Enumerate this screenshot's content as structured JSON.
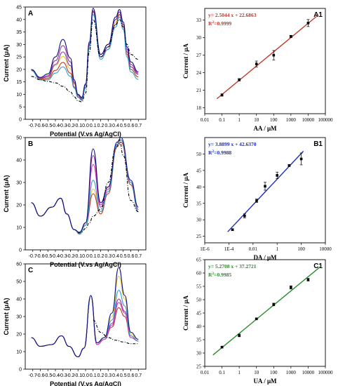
{
  "chart_data": [
    {
      "id": "A",
      "type": "line",
      "panel_label": "A",
      "xlabel": "Potential (V.vs Ag/AgCl)",
      "ylabel": "Current (μA)",
      "xlim": [
        -0.8,
        0.8
      ],
      "ylim": [
        0,
        45
      ],
      "xticks": [
        "-0.7",
        "-0.6",
        "-0.5",
        "-0.4",
        "-0.3",
        "-0.2",
        "-0.1",
        "0.0",
        "0.1",
        "0.2",
        "0.3",
        "0.4",
        "0.5",
        "0.6",
        "0.7"
      ],
      "xtick_values": [
        -0.7,
        -0.6,
        -0.5,
        -0.4,
        -0.3,
        -0.2,
        -0.1,
        0.0,
        0.1,
        0.2,
        0.3,
        0.4,
        0.5,
        0.6,
        0.7
      ],
      "yticks": [
        "0",
        "5",
        "10",
        "15",
        "20",
        "25",
        "30",
        "35",
        "40",
        "45"
      ],
      "ytick_values": [
        0,
        5,
        10,
        15,
        20,
        25,
        30,
        35,
        40,
        45
      ],
      "baseline": {
        "x": [
          -0.72,
          -0.6,
          -0.5,
          -0.4,
          -0.3,
          -0.2,
          -0.15,
          -0.1,
          -0.05,
          0.0,
          0.05,
          0.1,
          0.2,
          0.3,
          0.4,
          0.45,
          0.5,
          0.55,
          0.6,
          0.7
        ],
        "y": [
          17.2,
          15.8,
          15.2,
          14.6,
          13.2,
          11.0,
          9.0,
          7.4,
          7.0,
          10.5,
          27,
          40,
          25,
          29,
          38,
          40,
          37,
          30,
          26,
          24
        ]
      },
      "series": [
        {
          "color": "#e8c840",
          "y": [
            19.8,
            16.2,
            16.5,
            21.5,
            25.2,
            20.2,
            14.0,
            9.5,
            8.3,
            13.5,
            30,
            43,
            25,
            29,
            39,
            42,
            38,
            27,
            21,
            18
          ]
        },
        {
          "color": "#c03a20",
          "y": [
            19.6,
            16.0,
            16.3,
            19.6,
            22.8,
            18.5,
            13.0,
            9.0,
            7.8,
            12.8,
            29.5,
            43,
            25,
            28,
            38,
            42,
            37,
            26,
            20,
            17
          ]
        },
        {
          "color": "#a030a0",
          "y": [
            19.9,
            16.5,
            17.5,
            23.5,
            29.5,
            23.0,
            15.0,
            9.8,
            8.5,
            14.0,
            30.5,
            43.5,
            26,
            30,
            40,
            43,
            38,
            28,
            22,
            18.5
          ]
        },
        {
          "color": "#7a3aa0",
          "y": [
            20.0,
            16.4,
            17.0,
            22.0,
            27.0,
            21.5,
            14.5,
            9.6,
            8.1,
            13.8,
            30,
            43.5,
            25,
            29,
            40,
            43,
            38,
            27,
            21,
            18
          ]
        },
        {
          "color": "#30a0d0",
          "y": [
            19.5,
            15.8,
            15.8,
            18.5,
            21.0,
            17.2,
            12.5,
            8.8,
            7.6,
            12.5,
            28.5,
            42,
            24,
            28,
            37,
            41,
            36,
            25,
            19,
            16
          ]
        },
        {
          "color": "#101080",
          "y": [
            19.9,
            16.8,
            18.2,
            25.0,
            32.0,
            24.5,
            15.8,
            10.0,
            8.8,
            14.2,
            31,
            44.5,
            26,
            30,
            41,
            44,
            39,
            29,
            23,
            19
          ]
        }
      ]
    },
    {
      "id": "A1",
      "type": "scatter",
      "panel_label": "A1",
      "xlabel": "AA / μM",
      "ylabel": "Current / μA",
      "xscale": "log",
      "xlim": [
        0.01,
        100000
      ],
      "ylim": [
        17,
        35
      ],
      "xticks": [
        "0.01",
        "0.1",
        "1",
        "10",
        "100",
        "1000",
        "10000",
        "100000"
      ],
      "xtick_values": [
        0.01,
        0.1,
        1,
        10,
        100,
        1000,
        10000,
        100000
      ],
      "yticks": [
        "18",
        "21",
        "24",
        "27",
        "30",
        "33"
      ],
      "ytick_values": [
        18,
        21,
        24,
        27,
        30,
        33
      ],
      "equation": "y= 2.5044 x + 22.6863",
      "r2": "0.9999",
      "r2_label": "R",
      "r2_exp": "2",
      "r2_sep": "=",
      "color": "#c0392b",
      "points": [
        {
          "x": 0.1,
          "y": 20.2,
          "err": 0.2
        },
        {
          "x": 1,
          "y": 22.8,
          "err": 0.2
        },
        {
          "x": 10,
          "y": 25.5,
          "err": 0.5
        },
        {
          "x": 100,
          "y": 27.0,
          "err": 0.8
        },
        {
          "x": 1000,
          "y": 30.2,
          "err": 0.2
        },
        {
          "x": 10000,
          "y": 32.5,
          "err": 0.6
        }
      ],
      "fit_x": [
        0.05,
        40000
      ]
    },
    {
      "id": "B",
      "type": "line",
      "panel_label": "B",
      "xlabel": "Potential (V.vs Ag/AgCl)",
      "ylabel": "Current (μA)",
      "xlim": [
        -0.8,
        0.8
      ],
      "ylim": [
        0,
        50
      ],
      "xticks": [
        "-0.7",
        "-0.6",
        "-0.5",
        "-0.4",
        "-0.3",
        "-0.2",
        "-0.1",
        "0.0",
        "0.1",
        "0.2",
        "0.3",
        "0.4",
        "0.5",
        "0.6",
        "0.7"
      ],
      "xtick_values": [
        -0.7,
        -0.6,
        -0.5,
        -0.4,
        -0.3,
        -0.2,
        -0.1,
        0.0,
        0.1,
        0.2,
        0.3,
        0.4,
        0.5,
        0.6,
        0.7
      ],
      "yticks": [
        "0",
        "10",
        "20",
        "30",
        "40",
        "50"
      ],
      "ytick_values": [
        0,
        10,
        20,
        30,
        40,
        50
      ],
      "baseline": {
        "x": [
          -0.1,
          -0.05,
          0.0,
          0.05,
          0.1,
          0.2,
          0.3,
          0.4,
          0.45,
          0.5,
          0.6,
          0.7
        ],
        "y": [
          7.5,
          8.0,
          9.5,
          12,
          15,
          18,
          30,
          45,
          49,
          42,
          22,
          17
        ]
      },
      "series": [
        {
          "color": "#e8c840",
          "y": [
            21,
            15,
            19,
            23,
            16,
            9,
            7,
            11,
            27,
            17,
            26,
            47,
            49,
            30,
            18
          ]
        },
        {
          "color": "#c03a20",
          "y": [
            21,
            15,
            19,
            23,
            16,
            9,
            7,
            11,
            25,
            16,
            25,
            46,
            48,
            29,
            17
          ]
        },
        {
          "color": "#a030a0",
          "y": [
            21,
            15,
            19,
            23,
            16,
            9,
            7.5,
            12,
            42,
            20,
            28,
            47,
            49,
            30,
            18
          ]
        },
        {
          "color": "#d040c0",
          "y": [
            21,
            15,
            19,
            23,
            16,
            9,
            7.5,
            12,
            38,
            19,
            27,
            47,
            49,
            30,
            18
          ]
        },
        {
          "color": "#30a0d0",
          "y": [
            21,
            15,
            19,
            23,
            16,
            9,
            7.2,
            11,
            31,
            17,
            26,
            47,
            49,
            30,
            17
          ]
        },
        {
          "color": "#101080",
          "y": [
            21,
            15,
            19,
            23,
            16,
            9,
            7.8,
            12,
            45,
            21,
            28,
            48,
            50,
            31,
            19
          ]
        }
      ],
      "x": [
        -0.72,
        -0.6,
        -0.45,
        -0.33,
        -0.25,
        -0.15,
        -0.08,
        0.0,
        0.1,
        0.2,
        0.3,
        0.42,
        0.47,
        0.6,
        0.7
      ]
    },
    {
      "id": "B1",
      "type": "scatter",
      "panel_label": "B1",
      "xlabel": "DA / μM",
      "ylabel": "Current / μA",
      "xscale": "log",
      "xlim": [
        1e-06,
        10000
      ],
      "ylim": [
        23,
        55
      ],
      "xticks": [
        "1E-6",
        "1E-4",
        "0.01",
        "1",
        "100",
        "10000"
      ],
      "xtick_values": [
        1e-06,
        0.0001,
        0.01,
        1,
        100,
        10000
      ],
      "yticks": [
        "25",
        "30",
        "35",
        "40",
        "45",
        "50"
      ],
      "ytick_values": [
        25,
        30,
        35,
        40,
        45,
        50
      ],
      "equation": "y= 3.8899 x + 42.6370",
      "r2": "0.9988",
      "r2_label": "R",
      "r2_exp": "2",
      "r2_sep": "=",
      "color": "#1f2fbf",
      "points": [
        {
          "x": 0.0002,
          "y": 27.0,
          "err": 0.3
        },
        {
          "x": 0.002,
          "y": 31.2,
          "err": 0.6
        },
        {
          "x": 0.02,
          "y": 35.8,
          "err": 0.5
        },
        {
          "x": 0.1,
          "y": 40.2,
          "err": 1.2
        },
        {
          "x": 1,
          "y": 43.5,
          "err": 1.0
        },
        {
          "x": 10,
          "y": 46.5,
          "err": 0.3
        },
        {
          "x": 100,
          "y": 48.5,
          "err": 1.8
        }
      ],
      "fit_x": [
        8e-05,
        150
      ]
    },
    {
      "id": "C",
      "type": "line",
      "panel_label": "C",
      "xlabel": "Potential (V.vs Ag/AgCl)",
      "ylabel": "Current (μA)",
      "xlim": [
        -0.8,
        0.8
      ],
      "ylim": [
        0,
        60
      ],
      "xticks": [
        "-0.7",
        "-0.6",
        "-0.5",
        "-0.4",
        "-0.3",
        "-0.2",
        "-0.1",
        "0.0",
        "0.1",
        "0.2",
        "0.3",
        "0.4",
        "0.5",
        "0.6",
        "0.7"
      ],
      "xtick_values": [
        -0.7,
        -0.6,
        -0.5,
        -0.4,
        -0.3,
        -0.2,
        -0.1,
        0.0,
        0.1,
        0.2,
        0.3,
        0.4,
        0.5,
        0.6,
        0.7
      ],
      "yticks": [
        "0",
        "10",
        "20",
        "30",
        "40",
        "50",
        "60"
      ],
      "ytick_values": [
        0,
        10,
        20,
        30,
        40,
        50,
        60
      ],
      "baseline": {
        "x": [
          0.1,
          0.2,
          0.3,
          0.4,
          0.5,
          0.6,
          0.7
        ],
        "y": [
          28,
          21,
          18,
          16.5,
          15.5,
          14.5,
          14.5
        ]
      },
      "x": [
        -0.72,
        -0.6,
        -0.45,
        -0.32,
        -0.22,
        -0.1,
        -0.02,
        0.07,
        0.15,
        0.25,
        0.35,
        0.44,
        0.52,
        0.6,
        0.7
      ],
      "series": [
        {
          "color": "#e8c840",
          "y": [
            18,
            13,
            14,
            19,
            13,
            7,
            12,
            42,
            15,
            18,
            30,
            53,
            40,
            20,
            17
          ]
        },
        {
          "color": "#c03a20",
          "y": [
            18,
            13,
            14,
            19,
            13,
            7,
            12,
            42,
            14,
            17,
            24,
            35,
            30,
            18,
            16
          ]
        },
        {
          "color": "#a030a0",
          "y": [
            18,
            13,
            14,
            19,
            13,
            7,
            12,
            42,
            14,
            17,
            26,
            40,
            33,
            19,
            16
          ]
        },
        {
          "color": "#d040c0",
          "y": [
            18,
            13,
            14,
            19,
            13,
            7,
            12,
            42,
            14,
            17,
            25,
            38,
            32,
            18,
            16
          ]
        },
        {
          "color": "#30a0d0",
          "y": [
            18,
            13,
            14,
            19,
            13,
            7,
            12,
            42,
            15,
            18,
            28,
            45,
            36,
            19,
            16
          ]
        },
        {
          "color": "#101080",
          "y": [
            18,
            13,
            14,
            19,
            13,
            7,
            12,
            42,
            15,
            18,
            32,
            58,
            42,
            21,
            17
          ]
        }
      ]
    },
    {
      "id": "C1",
      "type": "scatter",
      "panel_label": "C1",
      "xlabel": "UA / μM",
      "ylabel": "Current / μA",
      "xscale": "log",
      "xlim": [
        0.01,
        100000
      ],
      "ylim": [
        25,
        65
      ],
      "xticks": [
        "0.01",
        "0.1",
        "1",
        "10",
        "100",
        "1000",
        "10000",
        "100000"
      ],
      "xtick_values": [
        0.01,
        0.1,
        1,
        10,
        100,
        1000,
        10000,
        100000
      ],
      "yticks": [
        "25",
        "30",
        "35",
        "40",
        "45",
        "50",
        "55",
        "60",
        "65"
      ],
      "ytick_values": [
        25,
        30,
        35,
        40,
        45,
        50,
        55,
        60,
        65
      ],
      "equation": "y= 5.2708 x + 37.2721",
      "r2": "0.9985",
      "r2_label": "R",
      "r2_exp": "2",
      "r2_sep": "=",
      "color": "#2e8b2e",
      "points": [
        {
          "x": 0.1,
          "y": 32.2,
          "err": 0.3
        },
        {
          "x": 1,
          "y": 36.6,
          "err": 0.5
        },
        {
          "x": 10,
          "y": 42.8,
          "err": 0.3
        },
        {
          "x": 100,
          "y": 48.2,
          "err": 0.5
        },
        {
          "x": 1000,
          "y": 54.6,
          "err": 0.6
        },
        {
          "x": 10000,
          "y": 57.5,
          "err": 0.5
        }
      ],
      "fit_x": [
        0.03,
        60000
      ]
    }
  ]
}
